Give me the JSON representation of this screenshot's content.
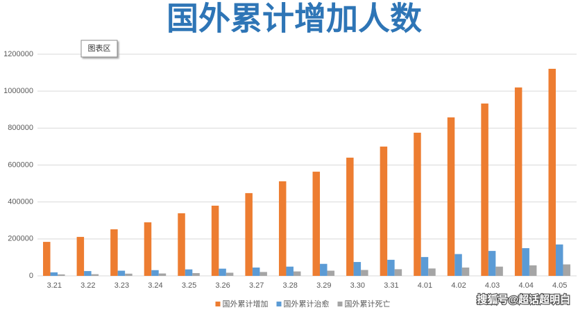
{
  "chart_data": {
    "type": "bar",
    "title": "国外累计增加人数",
    "tooltip": "图表区",
    "watermark": "搜狐号@超话超明白",
    "categories": [
      "3.21",
      "3.22",
      "3.23",
      "3.24",
      "3.25",
      "3.26",
      "3.27",
      "3.28",
      "3.29",
      "3.30",
      "3.31",
      "4.01",
      "4.02",
      "4.03",
      "4.04",
      "4.05"
    ],
    "series": [
      {
        "name": "国外累计增加",
        "color": "#ed7d31",
        "values": [
          184000,
          211000,
          252000,
          290000,
          339000,
          380000,
          448000,
          512000,
          564000,
          640000,
          700000,
          775000,
          858000,
          933000,
          1020000,
          1121000
        ]
      },
      {
        "name": "国外累计治愈",
        "color": "#5b9bd5",
        "values": [
          19000,
          26000,
          28000,
          31000,
          35000,
          39000,
          45000,
          50000,
          65000,
          75000,
          87000,
          102000,
          118000,
          135000,
          150000,
          170000
        ]
      },
      {
        "name": "国外累计死亡",
        "color": "#a5a5a5",
        "values": [
          8000,
          9000,
          12000,
          13000,
          15000,
          17000,
          21000,
          24000,
          28000,
          32000,
          36000,
          40000,
          45000,
          50000,
          57000,
          62000
        ]
      }
    ],
    "ylim": [
      0,
      1200000
    ],
    "yticks": [
      0,
      200000,
      400000,
      600000,
      800000,
      1000000,
      1200000
    ],
    "grid": true,
    "legend": "bottom"
  }
}
